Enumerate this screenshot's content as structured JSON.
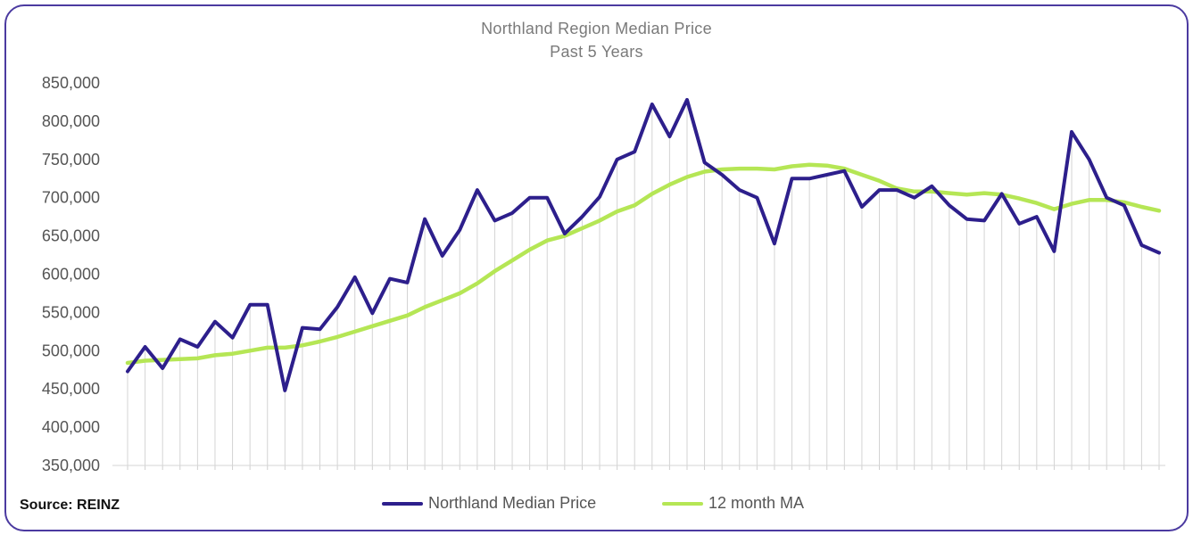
{
  "chart_data": {
    "type": "line",
    "title": "Northland Region Median Price",
    "subtitle": "Past 5 Years",
    "source": "Source: REINZ",
    "ylim": [
      350000,
      850000
    ],
    "yticks": [
      350000,
      400000,
      450000,
      500000,
      550000,
      600000,
      650000,
      700000,
      750000,
      800000,
      850000
    ],
    "ytick_labels": [
      "350,000",
      "400,000",
      "450,000",
      "500,000",
      "550,000",
      "600,000",
      "650,000",
      "700,000",
      "750,000",
      "800,000",
      "850,000"
    ],
    "xlabel": "",
    "ylabel": "",
    "grid": "vertical drop lines",
    "legend": "bottom-center",
    "series": [
      {
        "name": "Northland Median Price",
        "color": "#2d1f8c",
        "values": [
          473000,
          505000,
          477000,
          515000,
          505000,
          538000,
          517000,
          560000,
          560000,
          448000,
          530000,
          528000,
          557000,
          596000,
          549000,
          594000,
          589000,
          672000,
          624000,
          658000,
          710000,
          670000,
          680000,
          700000,
          700000,
          653000,
          675000,
          701000,
          750000,
          760000,
          822000,
          780000,
          828000,
          746000,
          730000,
          710000,
          700000,
          640000,
          725000,
          725000,
          730000,
          735000,
          688000,
          710000,
          710000,
          700000,
          715000,
          690000,
          672000,
          670000,
          705000,
          666000,
          675000,
          630000,
          786000,
          750000,
          700000,
          690000,
          638000,
          628000
        ]
      },
      {
        "name": "12 month MA",
        "color": "#b5e655",
        "values": [
          484000,
          487000,
          488000,
          489000,
          490000,
          494000,
          496000,
          500000,
          504000,
          504000,
          507000,
          512000,
          518000,
          525000,
          532000,
          539000,
          546000,
          557000,
          566000,
          575000,
          588000,
          604000,
          618000,
          632000,
          644000,
          650000,
          660000,
          670000,
          682000,
          690000,
          705000,
          717000,
          727000,
          734000,
          737000,
          738000,
          738000,
          737000,
          741000,
          743000,
          742000,
          738000,
          730000,
          722000,
          712000,
          708000,
          708000,
          706000,
          704000,
          706000,
          704000,
          699000,
          693000,
          685000,
          692000,
          697000,
          697000,
          694000,
          688000,
          683000
        ]
      }
    ]
  }
}
